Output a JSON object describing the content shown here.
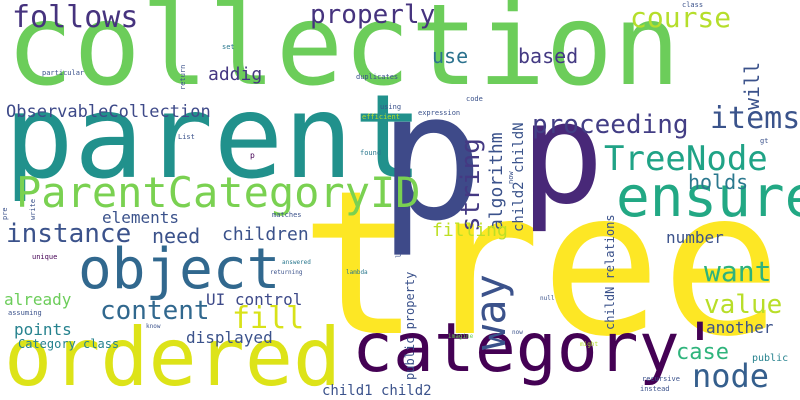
{
  "words": {
    "tree": "tree",
    "collection": "collection",
    "parent": "parent",
    "p_big": "p",
    "p_small": "p",
    "category": "category'",
    "ordered": "ordered",
    "ensure": "ensure",
    "ParentCategoryID": "ParentCategoryID",
    "object": "object",
    "TreeNode": "TreeNode",
    "way": "way",
    "follows": "follows",
    "properly": "properly",
    "course": "course",
    "string": "string",
    "items": "items",
    "proceeding": "proceeding",
    "node": "node",
    "instance": "instance",
    "content": "content",
    "want": "want",
    "value": "value",
    "fill": "fill",
    "ObservableCollection": "ObservableCollection",
    "holds": "holds",
    "case": "case",
    "elements": "elements",
    "need": "need",
    "children": "children",
    "based": "based",
    "use": "use",
    "addig": "addig",
    "will": "will",
    "algorithm": "algorithm",
    "child2_childN": "child2 childN",
    "filling": "filling",
    "number": "number",
    "already": "already",
    "points": "points",
    "UI_control": "UI control",
    "displayed": "displayed",
    "another": "another",
    "Category_class": "Category class",
    "child1_child2": "child1 child2",
    "childN_relations": "childN relations",
    "public_property": "public property",
    "public": "public",
    "class": "class",
    "set": "set",
    "particular": "particular",
    "return": "return",
    "duplicates": "duplicates",
    "using": "using",
    "efficient": "efficient",
    "expression": "expression",
    "code": "code",
    "List": "List",
    "gt": "gt",
    "found": "found",
    "now_small": "now",
    "pre": "pre",
    "write": "write",
    "matches": "matches",
    "unique": "unique",
    "answered": "answered",
    "returning": "returning",
    "lambda": "lambda",
    "lt": "lt",
    "null": "null",
    "assuming": "assuming",
    "know": "know",
    "imagine": "imagine",
    "now": "now",
    "might": "might",
    "recursive": "recursive",
    "instead": "instead",
    "p_tiny": "p"
  }
}
